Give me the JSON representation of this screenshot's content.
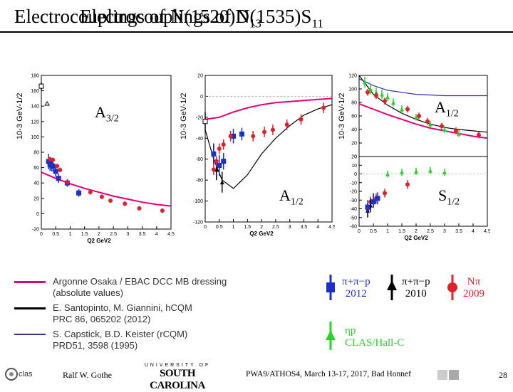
{
  "title": {
    "overlay_a": "Electrocouplings of N(1520)D",
    "overlay_a_sub": "13",
    "overlay_b": "Electrocouplings of N(1535)S",
    "overlay_b_sub": "11"
  },
  "colors": {
    "magenta": "#e0007a",
    "red": "#e0202a",
    "blue": "#1c30c8",
    "green": "#2ad12a",
    "black": "#000000",
    "capstick": "#3030a0"
  },
  "chart_data": [
    {
      "type": "scatter",
      "panel": "A3/2 of N(1520)D13",
      "label": "A",
      "label_sub": "3/2",
      "ylabel": "10-3 GeV-1/2",
      "xlabel": "Q2 GeV2",
      "xlim": [
        0,
        4.5
      ],
      "ylim": [
        -20,
        180
      ],
      "xticks": [
        "0",
        "0.5",
        "1",
        "1.5",
        "2",
        "2.5",
        "3",
        "3.5",
        "4",
        "4.5"
      ],
      "yticks": [
        "-20",
        "0",
        "20",
        "40",
        "60",
        "80",
        "100",
        "120",
        "140",
        "160",
        "180"
      ],
      "series": [
        {
          "name": "PDG",
          "x": [
            0
          ],
          "y": [
            166
          ],
          "err": [
            5
          ],
          "marker": "open-square"
        },
        {
          "name": "pi+pi-p 2010",
          "x": [
            0.2
          ],
          "y": [
            143
          ],
          "err": [
            0
          ],
          "marker": "open-triangle"
        },
        {
          "name": "pi+pi-p 2012",
          "x": [
            0.25,
            0.3,
            0.35,
            0.4,
            0.5,
            0.6,
            0.9,
            1.3
          ],
          "y": [
            68,
            64,
            63,
            62,
            55,
            46,
            40,
            27
          ],
          "err": [
            10,
            8,
            8,
            7,
            7,
            6,
            5,
            5
          ],
          "marker": "filled-square"
        },
        {
          "name": "Npi 2009",
          "x": [
            0.3,
            0.4,
            0.55,
            0.65,
            0.9,
            1.7,
            2.1,
            2.4,
            2.9,
            3.4,
            4.2
          ],
          "y": [
            71,
            70,
            62,
            57,
            41,
            28,
            22,
            17,
            13,
            7,
            4
          ],
          "err": [
            3,
            3,
            3,
            3,
            3,
            3,
            3,
            3,
            3,
            3,
            3
          ],
          "marker": "filled-circle"
        }
      ],
      "curves": [
        {
          "name": "Argonne Osaka / EBAC DCC MB dressing",
          "x": [
            0,
            0.5,
            1,
            1.5,
            2,
            2.5,
            3,
            3.5,
            4,
            4.5
          ],
          "y": [
            54,
            46,
            39,
            33,
            28,
            23,
            19,
            15,
            12,
            10
          ]
        }
      ]
    },
    {
      "type": "scatter",
      "panel": "A1/2 of N(1520)D13",
      "label": "A",
      "label_sub": "1/2",
      "ylabel": "10-3 GeV-1/2",
      "xlabel": "Q2 GeV2",
      "xlim": [
        0,
        4.5
      ],
      "ylim": [
        -120,
        20
      ],
      "xticks": [
        "0",
        "0.5",
        "1",
        "1.5",
        "2",
        "2.5",
        "3",
        "3.5",
        "4",
        "4.5"
      ],
      "yticks": [
        "20",
        "0",
        "-20",
        "-40",
        "-60",
        "-80",
        "-100",
        "-120"
      ],
      "series": [
        {
          "name": "PDG",
          "x": [
            0
          ],
          "y": [
            -24
          ],
          "err": [
            9
          ],
          "marker": "open-square"
        },
        {
          "name": "pi+pi-p 2010",
          "x": [
            0.3,
            0.4,
            0.6
          ],
          "y": [
            -55,
            -70,
            -82
          ],
          "err": [
            10,
            10,
            10
          ],
          "marker": "filled-triangle"
        },
        {
          "name": "pi+pi-p 2012",
          "x": [
            0.3,
            0.5,
            0.65,
            1.0,
            1.3
          ],
          "y": [
            -55,
            -66,
            -62,
            -38,
            -36
          ],
          "err": [
            10,
            10,
            8,
            7,
            6
          ],
          "marker": "filled-square"
        },
        {
          "name": "Npi 2009",
          "x": [
            0.3,
            0.4,
            0.5,
            0.65,
            0.9,
            1.7,
            2.1,
            2.4,
            2.9,
            3.4,
            4.2
          ],
          "y": [
            -70,
            -62,
            -50,
            -46,
            -38,
            -38,
            -34,
            -32,
            -27,
            -22,
            -11
          ],
          "err": [
            5,
            5,
            5,
            5,
            5,
            5,
            5,
            5,
            5,
            5,
            5
          ],
          "marker": "filled-circle"
        }
      ],
      "curves": [
        {
          "name": "Argonne Osaka / EBAC DCC MB dressing",
          "x": [
            0,
            0.5,
            1,
            1.5,
            2,
            2.5,
            3,
            3.5,
            4,
            4.5
          ],
          "y": [
            -22,
            -20,
            -15,
            -11,
            -8,
            -6,
            -5,
            -4,
            -3,
            -2
          ]
        },
        {
          "name": "E. Santopinto, M. Giannini, hCQM",
          "x": [
            0,
            0.3,
            0.6,
            1.0,
            1.5,
            2,
            2.5,
            3,
            3.5,
            4,
            4.5
          ],
          "y": [
            -32,
            -60,
            -80,
            -88,
            -75,
            -55,
            -40,
            -28,
            -18,
            -12,
            -8
          ]
        }
      ]
    },
    {
      "type": "scatter",
      "panel": "A1/2 and S1/2 of N(1535)S11",
      "label_top": "A",
      "label_top_sub": "1/2",
      "label_bottom": "S",
      "label_bottom_sub": "1/2",
      "ylabel": "10-3 GeV-1/2",
      "xlabel": "Q2 GeV2",
      "xlim": [
        0,
        4.5
      ],
      "top_ylim": [
        0,
        120
      ],
      "bottom_ylim": [
        -60,
        20
      ],
      "xticks": [
        "0",
        "0.5",
        "1",
        "1.5",
        "2",
        "2.5",
        "3",
        "3.5",
        "4",
        "4.5"
      ],
      "top_yticks": [
        "120",
        "100",
        "80",
        "60",
        "40",
        "20",
        "0"
      ],
      "bottom_yticks": [
        "20",
        "10",
        "0",
        "-10",
        "-20",
        "-30",
        "-40",
        "-50",
        "-60"
      ],
      "series": [
        {
          "name": "eta p CLAS/Hall-C",
          "x": [
            0.2,
            0.4,
            0.6,
            0.8,
            1.0,
            1.2,
            1.5,
            2.0,
            2.5,
            3.0,
            3.5
          ],
          "y": [
            110,
            100,
            95,
            92,
            88,
            80,
            70,
            58,
            48,
            40,
            34
          ],
          "err": [
            8,
            8,
            7,
            7,
            6,
            6,
            6,
            5,
            5,
            5,
            5
          ],
          "marker": "filled-triangle-up"
        },
        {
          "name": "Npi 2009 (A1/2)",
          "x": [
            0.3,
            0.6,
            0.9,
            1.7,
            2.1,
            2.4,
            2.9,
            3.4,
            4.2
          ],
          "y": [
            95,
            90,
            82,
            70,
            60,
            52,
            45,
            38,
            32
          ],
          "err": [
            5,
            5,
            5,
            5,
            5,
            5,
            5,
            5,
            5
          ],
          "marker": "filled-circle"
        },
        {
          "name": "Npi 2009 (S1/2)",
          "x": [
            0.3,
            0.4,
            0.6,
            0.9,
            1.7
          ],
          "y": [
            -40,
            -32,
            -28,
            -22,
            -12
          ],
          "err": [
            6,
            6,
            6,
            5,
            5
          ],
          "marker": "filled-circle"
        },
        {
          "name": "pi+pi-p 2010 (S1/2)",
          "x": [
            0.3,
            0.4,
            0.5
          ],
          "y": [
            -42,
            -36,
            -30
          ],
          "err": [
            8,
            8,
            8
          ],
          "marker": "filled-triangle"
        },
        {
          "name": "pi+pi-p 2012 (S1/2)",
          "x": [
            0.3,
            0.5,
            0.65
          ],
          "y": [
            -38,
            -32,
            -28
          ],
          "err": [
            8,
            7,
            7
          ],
          "marker": "filled-square"
        },
        {
          "name": "eta p (S1/2)",
          "x": [
            1.0,
            1.5,
            2.0,
            2.5,
            3.0
          ],
          "y": [
            0,
            2,
            3,
            4,
            2
          ],
          "err": [
            4,
            4,
            4,
            4,
            4
          ],
          "marker": "filled-triangle-up"
        }
      ],
      "curves": [
        {
          "name": "Argonne Osaka / EBAC DCC MB dressing",
          "x": [
            0,
            0.5,
            1,
            1.5,
            2,
            2.5,
            3,
            3.5,
            4,
            4.5
          ],
          "y": [
            78,
            70,
            62,
            55,
            48,
            42,
            38,
            34,
            30,
            27
          ]
        },
        {
          "name": "E. Santopinto, M. Giannini, hCQM",
          "x": [
            0,
            0.5,
            1,
            1.5,
            2,
            2.5,
            3,
            3.5,
            4,
            4.5
          ],
          "y": [
            120,
            92,
            76,
            64,
            55,
            48,
            43,
            40,
            38,
            36
          ]
        },
        {
          "name": "S. Capstick, B.D. Keister (rCQM)",
          "x": [
            0,
            0.5,
            1,
            1.5,
            2,
            2.5,
            3,
            3.5,
            4,
            4.5
          ],
          "y": [
            115,
            105,
            98,
            95,
            92,
            91,
            90,
            90,
            90,
            90
          ]
        }
      ]
    }
  ],
  "legend": {
    "items": [
      {
        "line_color": "#e0007a",
        "lines": [
          "Argonne Osaka / EBAC DCC MB dressing",
          "(absolute values)"
        ]
      },
      {
        "line_color": "#000000",
        "lines": [
          "E. Santopinto, M. Giannini, hCQM",
          "PRC 86, 065202 (2012)"
        ]
      },
      {
        "line_color": "#3030a0",
        "lines": [
          "S. Capstick, B.D. Keister (rCQM)",
          "PRD51, 3598 (1995)"
        ]
      }
    ]
  },
  "data_symbols": {
    "pipi_2012": {
      "label": "π+π−p",
      "year": "2012"
    },
    "pipi_2010": {
      "label": "π+π−p",
      "year": "2010"
    },
    "npi_2009": {
      "label": "Nπ",
      "year": "2009"
    },
    "etap": {
      "label": "ηp",
      "sub": "CLAS/Hall-C"
    }
  },
  "footer": {
    "logo_left": "clas",
    "author": "Ralf  W. Gothe",
    "university_top": "UNIVERSITY OF",
    "university_name": "SOUTH CAROLINA",
    "conference": "PWA9/ATHOS4, March 13-17, 2017, Bad Honnef",
    "page": "28"
  }
}
